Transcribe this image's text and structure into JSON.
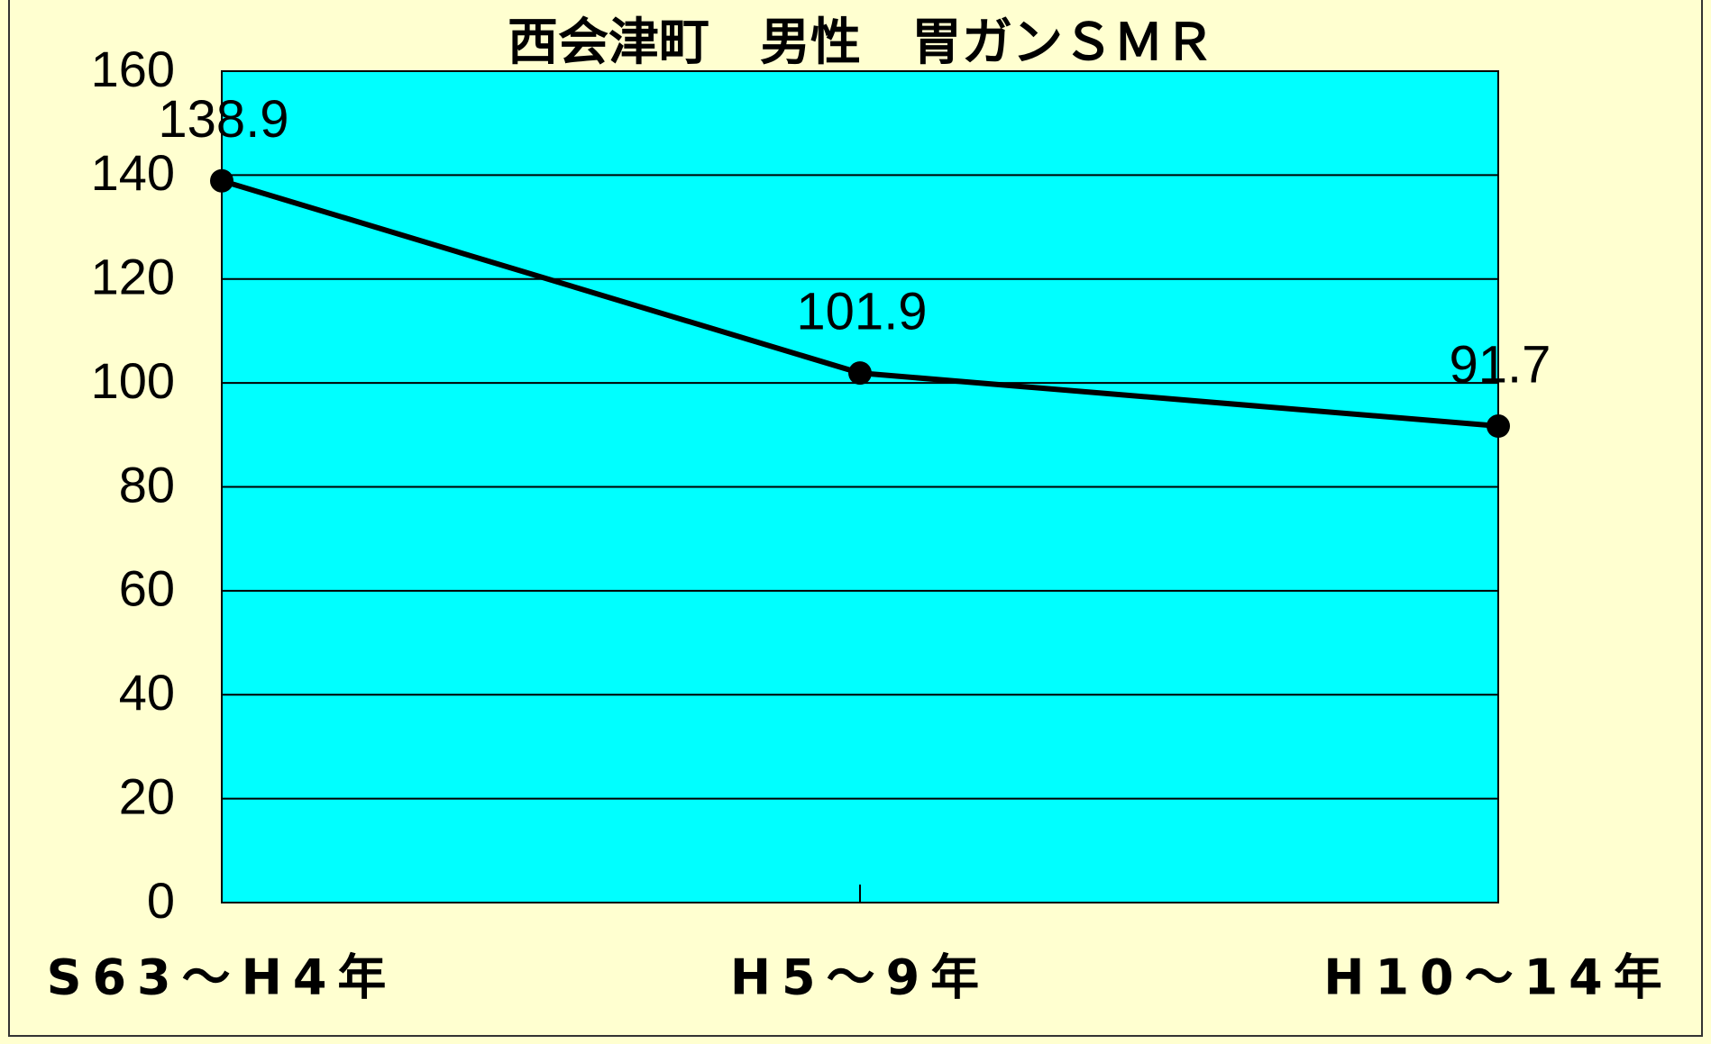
{
  "chart_data": {
    "type": "line",
    "title": "西会津町　男性　胃ガンＳＭＲ",
    "categories": [
      "S63～H4年",
      "H5～9年",
      "H10～14年"
    ],
    "series": [
      {
        "color": "#000000",
        "values": [
          138.9,
          101.9,
          91.7
        ]
      }
    ],
    "ylim": [
      0,
      160
    ],
    "yticks": [
      0,
      20,
      40,
      60,
      80,
      100,
      120,
      140,
      160
    ],
    "grid": true
  }
}
